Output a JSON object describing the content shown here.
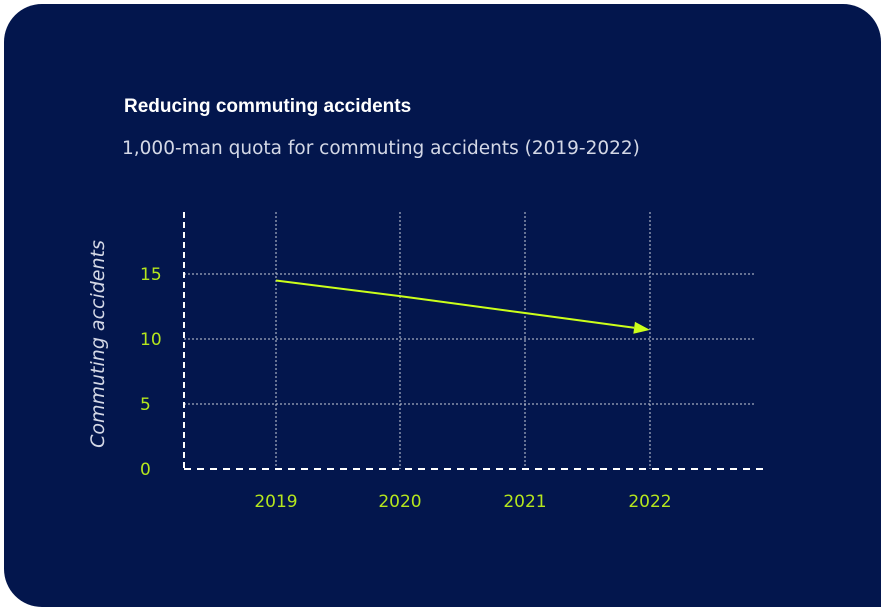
{
  "colors": {
    "background": "#03164d",
    "accent": "#ccff1a",
    "tick_text": "#b5e61d",
    "grid": "#c9cdd9",
    "axis": "#ffffff",
    "text": "#ffffff"
  },
  "chart_data": {
    "type": "line",
    "title": "Reducing commuting accidents",
    "subtitle": "1,000-man quota for commuting accidents (2019-2022)",
    "xlabel": "",
    "ylabel": "Commuting accidents",
    "categories": [
      "2019",
      "2020",
      "2021",
      "2022"
    ],
    "series": [
      {
        "values": [
          14.5,
          13.3,
          12.0,
          10.7
        ]
      }
    ],
    "ylim": [
      0,
      15
    ],
    "yticks": [
      0,
      5,
      10,
      15
    ],
    "grid": true,
    "legend": "none",
    "arrow_end": true
  }
}
